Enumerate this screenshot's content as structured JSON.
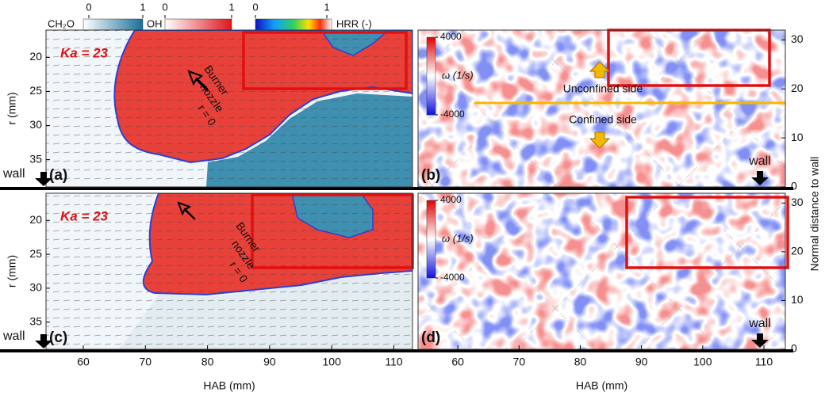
{
  "chart_data": [
    {
      "type": "field",
      "panel": "(a)",
      "annotation": "Ka = 23",
      "nozzle": [
        "Burner",
        "nozzle",
        "r = 0"
      ],
      "wall": "wall",
      "ylabel": "r (mm)",
      "xlim": [
        54,
        113
      ],
      "ylim": [
        16,
        39
      ],
      "yticks": [
        20,
        25,
        30,
        35
      ]
    },
    {
      "type": "field",
      "panel": "(b)",
      "wall": "wall",
      "regions": [
        "Unconfined side",
        "Confined side"
      ],
      "colorbar": {
        "label": "ω (1/s)",
        "lim": [
          -4000,
          4000
        ],
        "ticks": [
          4000,
          -4000
        ]
      },
      "xlim": [
        53.5,
        113.5
      ],
      "y2lim": [
        0,
        32
      ],
      "y2ticks": [
        0,
        10,
        20,
        30
      ],
      "y2label": "Normal distance to wall"
    },
    {
      "type": "field",
      "panel": "(c)",
      "annotation": "Ka = 23",
      "nozzle": [
        "Burner",
        "nozzle",
        "r = 0"
      ],
      "wall": "wall",
      "ylabel": "r (mm)",
      "xlabel": "HAB (mm)",
      "xlim": [
        54,
        113
      ],
      "xticks": [
        60,
        70,
        80,
        90,
        100,
        110
      ],
      "ylim": [
        16,
        39
      ],
      "yticks": [
        20,
        25,
        30,
        35
      ]
    },
    {
      "type": "field",
      "panel": "(d)",
      "wall": "wall",
      "colorbar": {
        "label": "ω (1/s)",
        "lim": [
          -4000,
          4000
        ],
        "ticks": [
          4000,
          -4000
        ]
      },
      "xlabel": "HAB (mm)",
      "xlim": [
        53.5,
        113.5
      ],
      "xticks": [
        60,
        70,
        80,
        90,
        100,
        110
      ],
      "y2lim": [
        0,
        32
      ],
      "y2ticks": [
        0,
        10,
        20,
        30
      ]
    }
  ],
  "colorbars": [
    {
      "label": "CH₂O",
      "lim": [
        0,
        1
      ],
      "ticks": [
        0,
        1
      ]
    },
    {
      "label": "OH",
      "lim": [
        0,
        1
      ],
      "ticks": [
        0,
        1
      ]
    },
    {
      "label": "HRR (-)",
      "lim": [
        0,
        1
      ],
      "ticks": [
        0,
        1
      ]
    }
  ]
}
